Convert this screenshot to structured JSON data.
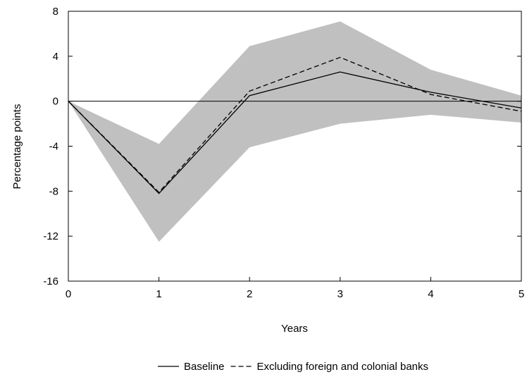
{
  "chart_data": {
    "type": "line",
    "title": "",
    "xlabel": "Years",
    "ylabel": "Percentage points",
    "x": [
      0,
      1,
      2,
      3,
      4,
      5
    ],
    "xlim": [
      0,
      5
    ],
    "ylim": [
      -16,
      8
    ],
    "xticks": [
      0,
      1,
      2,
      3,
      4,
      5
    ],
    "yticks": [
      -16,
      -12,
      -8,
      -4,
      0,
      4,
      8
    ],
    "grid": false,
    "zero_line": true,
    "legend_position": "bottom-center",
    "band": {
      "upper": [
        0,
        -3.8,
        4.9,
        7.1,
        2.8,
        0.5
      ],
      "lower": [
        0,
        -12.5,
        -4.1,
        -2.0,
        -1.2,
        -1.9
      ],
      "color": "#c0c0c0"
    },
    "series": [
      {
        "name": "Baseline",
        "values": [
          0,
          -8.2,
          0.5,
          2.6,
          0.8,
          -0.6
        ],
        "style": "solid",
        "color": "#000000"
      },
      {
        "name": "Excluding foreign and colonial banks",
        "values": [
          0,
          -8.1,
          0.9,
          3.9,
          0.6,
          -0.9
        ],
        "style": "dashed",
        "color": "#000000"
      }
    ]
  }
}
